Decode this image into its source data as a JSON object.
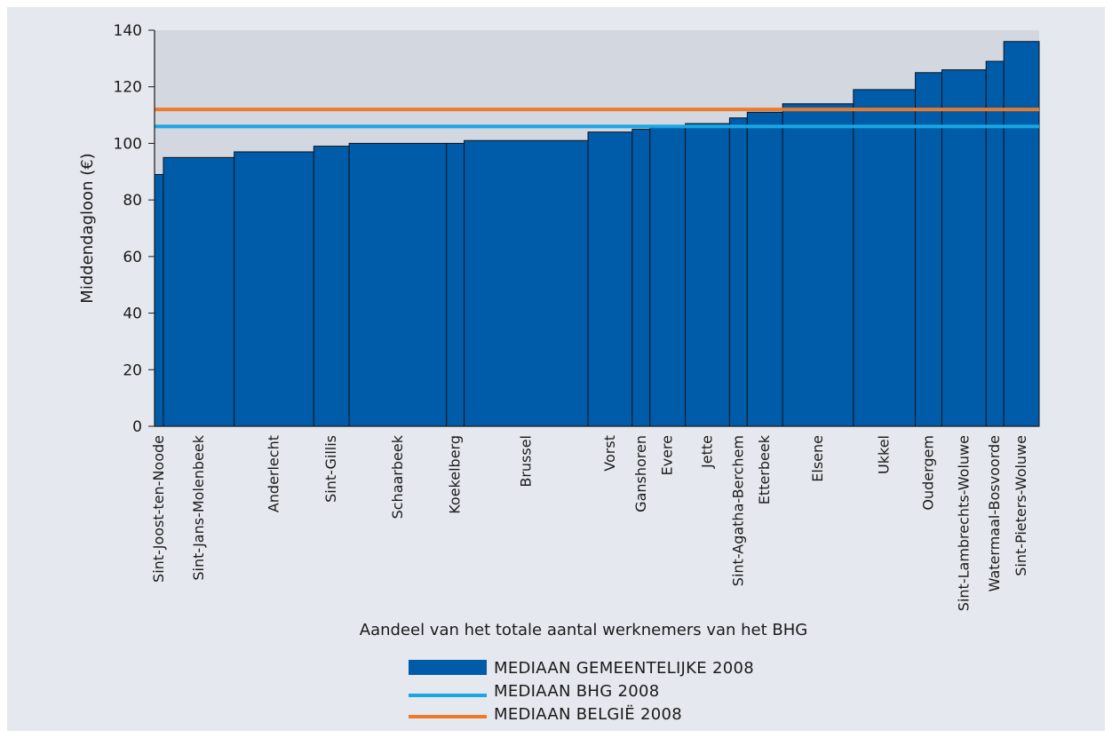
{
  "chart_data": {
    "type": "bar",
    "subtype": "variable-width",
    "xlabel": "Aandeel van het totale aantal werknemers van het BHG",
    "ylabel": "Middendagloon (€)",
    "ylim": [
      0,
      140
    ],
    "yticks": [
      0,
      20,
      40,
      60,
      80,
      100,
      120,
      140
    ],
    "ytick_labels": [
      "0",
      "20",
      "40",
      "60",
      "80",
      "100",
      "120",
      "140"
    ],
    "categories": [
      "Sint-Joost-ten-Noode",
      "Sint-Jans-Molenbeek",
      "Anderlecht",
      "Sint-Gillis",
      "Schaarbeek",
      "Koekelberg",
      "Brussel",
      "Vorst",
      "Ganshoren",
      "Evere",
      "Jette",
      "Sint-Agatha-Berchem",
      "Etterbeek",
      "Elsene",
      "Ukkel",
      "Oudergem",
      "Sint-Lambrechts-Woluwe",
      "Watermaal-Bosvoorde",
      "Sint-Pieters-Woluwe"
    ],
    "values": [
      89,
      95,
      97,
      99,
      100,
      100,
      101,
      104,
      105,
      106,
      107,
      109,
      111,
      114,
      119,
      125,
      126,
      129,
      136
    ],
    "widths": [
      1,
      8,
      9,
      4,
      11,
      2,
      14,
      5,
      2,
      4,
      5,
      2,
      4,
      8,
      7,
      3,
      5,
      2,
      4
    ],
    "reference_lines": [
      {
        "name": "MEDIAAN BHG 2008",
        "value": 106,
        "color": "#1aa6e3"
      },
      {
        "name": "MEDIAAN BELGIË 2008",
        "value": 112,
        "color": "#ee7a28"
      }
    ],
    "series": [
      {
        "name": "MEDIAAN GEMEENTELIJKE 2008",
        "color": "#005ca8"
      }
    ],
    "grid": false,
    "legend_position": "bottom-center",
    "plot_background": "#d3d7df",
    "frame_background": "#e5e8ee"
  }
}
